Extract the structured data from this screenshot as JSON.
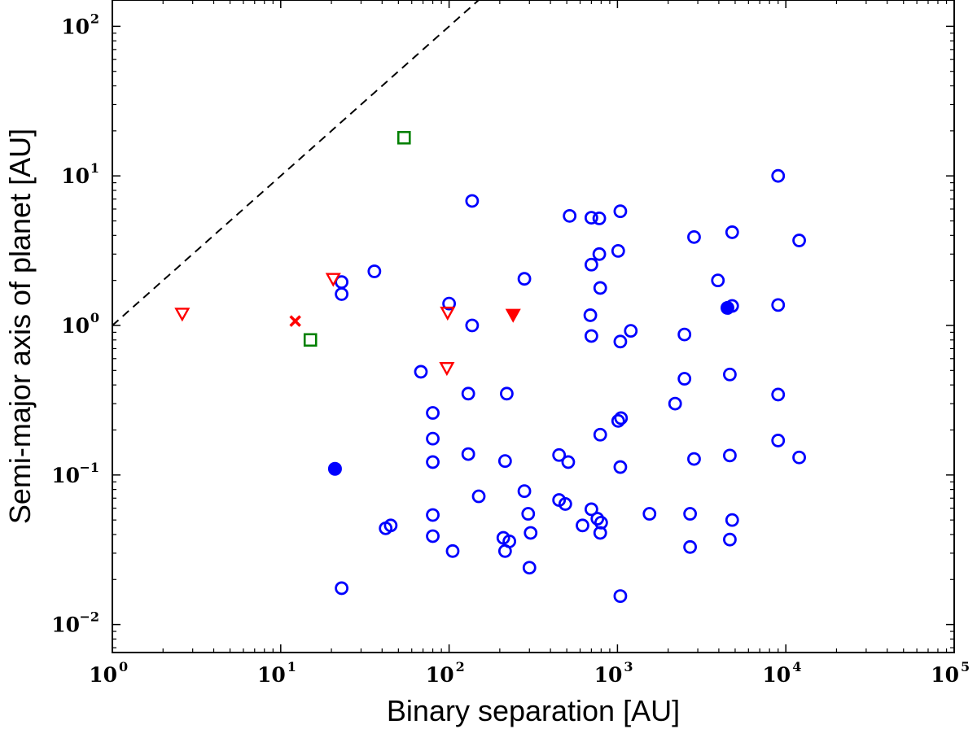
{
  "chart_data": {
    "type": "scatter",
    "title": "",
    "xlabel": "Binary separation [AU]",
    "ylabel": "Semi-major axis of planet [AU]",
    "xscale": "log",
    "yscale": "log",
    "xlim": [
      1,
      100000
    ],
    "ylim": [
      0.0065,
      150
    ],
    "grid": false,
    "legend": "none",
    "x_ticks": [
      {
        "value": 1,
        "base": "10",
        "exp": "0"
      },
      {
        "value": 10,
        "base": "10",
        "exp": "1"
      },
      {
        "value": 100,
        "base": "10",
        "exp": "2"
      },
      {
        "value": 1000,
        "base": "10",
        "exp": "3"
      },
      {
        "value": 10000,
        "base": "10",
        "exp": "4"
      },
      {
        "value": 100000,
        "base": "10",
        "exp": "5"
      }
    ],
    "y_ticks": [
      {
        "value": 0.01,
        "base": "10",
        "exp": "−2"
      },
      {
        "value": 0.1,
        "base": "10",
        "exp": "−1"
      },
      {
        "value": 1,
        "base": "10",
        "exp": "0"
      },
      {
        "value": 10,
        "base": "10",
        "exp": "1"
      },
      {
        "value": 100,
        "base": "10",
        "exp": "2"
      }
    ],
    "reference_line": {
      "points": [
        [
          1,
          1
        ],
        [
          200,
          200
        ]
      ],
      "style": "dashed",
      "color": "#000000"
    },
    "series": [
      {
        "marker": "circle-open",
        "color": "#0000ff",
        "points": [
          [
            23,
            1.95
          ],
          [
            23,
            1.62
          ],
          [
            36,
            2.3
          ],
          [
            23,
            0.0175
          ],
          [
            42,
            0.044
          ],
          [
            45,
            0.046
          ],
          [
            68,
            0.49
          ],
          [
            80,
            0.26
          ],
          [
            80,
            0.175
          ],
          [
            80,
            0.122
          ],
          [
            80,
            0.054
          ],
          [
            80,
            0.039
          ],
          [
            100,
            1.4
          ],
          [
            105,
            0.031
          ],
          [
            137,
            6.8
          ],
          [
            137,
            1.0
          ],
          [
            130,
            0.35
          ],
          [
            130,
            0.138
          ],
          [
            150,
            0.072
          ],
          [
            220,
            0.35
          ],
          [
            215,
            0.124
          ],
          [
            210,
            0.038
          ],
          [
            215,
            0.031
          ],
          [
            228,
            0.036
          ],
          [
            280,
            2.05
          ],
          [
            280,
            0.078
          ],
          [
            295,
            0.055
          ],
          [
            305,
            0.041
          ],
          [
            300,
            0.024
          ],
          [
            450,
            0.136
          ],
          [
            450,
            0.068
          ],
          [
            490,
            0.064
          ],
          [
            510,
            0.122
          ],
          [
            520,
            5.4
          ],
          [
            620,
            0.046
          ],
          [
            700,
            5.25
          ],
          [
            700,
            2.55
          ],
          [
            690,
            1.17
          ],
          [
            700,
            0.85
          ],
          [
            700,
            0.059
          ],
          [
            780,
            5.2
          ],
          [
            780,
            3.0
          ],
          [
            790,
            1.78
          ],
          [
            790,
            0.186
          ],
          [
            760,
            0.051
          ],
          [
            800,
            0.048
          ],
          [
            790,
            0.041
          ],
          [
            1040,
            5.8
          ],
          [
            1010,
            3.15
          ],
          [
            1040,
            0.78
          ],
          [
            1010,
            0.23
          ],
          [
            1050,
            0.24
          ],
          [
            1040,
            0.113
          ],
          [
            1040,
            0.0155
          ],
          [
            1200,
            0.92
          ],
          [
            1550,
            0.055
          ],
          [
            2200,
            0.3
          ],
          [
            2500,
            0.87
          ],
          [
            2500,
            0.44
          ],
          [
            2700,
            0.055
          ],
          [
            2700,
            0.033
          ],
          [
            2850,
            3.9
          ],
          [
            2850,
            0.128
          ],
          [
            3950,
            2.0
          ],
          [
            4800,
            4.2
          ],
          [
            4800,
            1.35
          ],
          [
            4650,
            0.47
          ],
          [
            4650,
            0.135
          ],
          [
            4800,
            0.05
          ],
          [
            4650,
            0.037
          ],
          [
            9000,
            10.0
          ],
          [
            9000,
            1.37
          ],
          [
            9000,
            0.345
          ],
          [
            9000,
            0.17
          ],
          [
            12000,
            3.7
          ],
          [
            12000,
            0.131
          ]
        ]
      },
      {
        "marker": "circle-filled",
        "color": "#0000ff",
        "points": [
          [
            21,
            0.11
          ],
          [
            4500,
            1.31
          ]
        ]
      },
      {
        "marker": "triangle-down-open",
        "color": "#ff0000",
        "points": [
          [
            2.6,
            1.2
          ],
          [
            20.5,
            2.05
          ],
          [
            98,
            1.22
          ],
          [
            97,
            0.52
          ]
        ]
      },
      {
        "marker": "triangle-down-filled",
        "color": "#ff0000",
        "points": [
          [
            240,
            1.18
          ]
        ]
      },
      {
        "marker": "x",
        "color": "#ff0000",
        "points": [
          [
            12.2,
            1.07
          ]
        ]
      },
      {
        "marker": "square-open",
        "color": "#008000",
        "points": [
          [
            54,
            18.0
          ],
          [
            15,
            0.8
          ]
        ]
      }
    ]
  }
}
